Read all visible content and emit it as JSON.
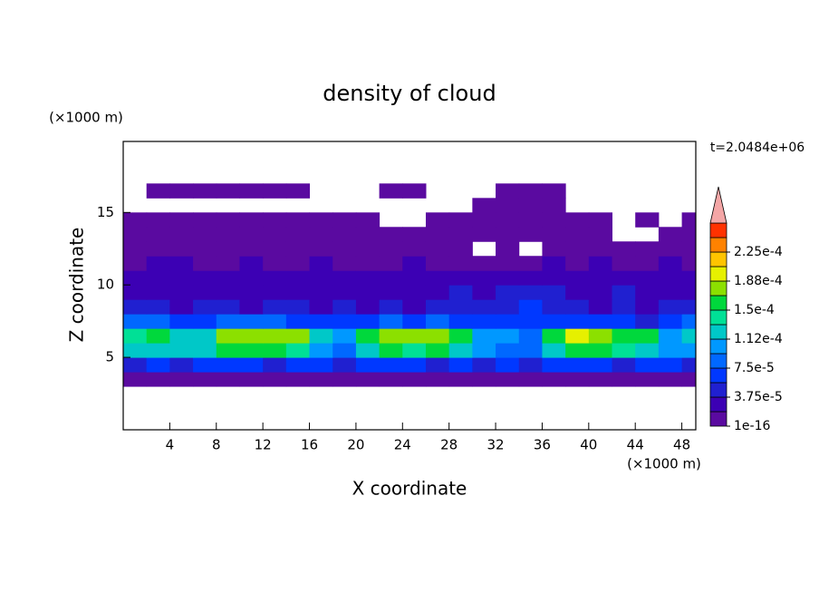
{
  "chart_data": {
    "type": "contour",
    "title": "density of cloud",
    "x_label": "X coordinate",
    "y_label": "Z coordinate",
    "x_unit": "(×1000 m)",
    "y_unit": "(×1000 m)",
    "time_label": "t=2.0484e+06",
    "xlim": [
      0,
      49.2
    ],
    "ylim": [
      0,
      19.9
    ],
    "xticks": [
      4,
      8,
      12,
      16,
      20,
      24,
      28,
      32,
      36,
      40,
      44,
      48
    ],
    "yticks": [
      5,
      10,
      15
    ],
    "x": [
      1,
      3,
      5,
      7,
      9,
      11,
      13,
      15,
      17,
      19,
      21,
      23,
      25,
      27,
      29,
      31,
      33,
      35,
      37,
      39,
      41,
      43,
      45,
      47,
      49
    ],
    "y": [
      3.5,
      4.5,
      5.5,
      6.5,
      7.5,
      8.5,
      9.5,
      10.5,
      11.5,
      12.5,
      13.5,
      14.5,
      15.5,
      16.5,
      17.5
    ],
    "z": [
      [
        1e-05,
        1e-05,
        1e-05,
        1e-05,
        1e-05,
        1e-05,
        1e-05,
        1e-05,
        1e-05,
        1e-05,
        1e-05,
        1e-05,
        1e-05,
        1e-05,
        1e-05,
        1e-05,
        1e-05,
        1e-05,
        1e-05,
        1e-05,
        1e-05,
        1e-05,
        1e-05,
        1e-05,
        1e-05
      ],
      [
        5e-05,
        6e-05,
        5e-05,
        6e-05,
        7e-05,
        6e-05,
        5e-05,
        6e-05,
        6e-05,
        5e-05,
        6e-05,
        7e-05,
        6e-05,
        5e-05,
        6e-05,
        5e-05,
        6e-05,
        5e-05,
        6e-05,
        7e-05,
        6e-05,
        5e-05,
        6e-05,
        6e-05,
        5e-05
      ],
      [
        0.00012,
        0.00013,
        0.00012,
        0.00013,
        0.00015,
        0.00016,
        0.00015,
        0.00014,
        0.00011,
        9e-05,
        0.00013,
        0.00015,
        0.00014,
        0.00015,
        0.00013,
        0.0001,
        9e-05,
        8e-05,
        0.00012,
        0.00015,
        0.00015,
        0.00014,
        0.00013,
        0.0001,
        0.00011
      ],
      [
        0.00014,
        0.00015,
        0.00013,
        0.00012,
        0.00017,
        0.00018,
        0.00018,
        0.00017,
        0.00013,
        0.0001,
        0.00016,
        0.00018,
        0.00017,
        0.00018,
        0.00016,
        0.00011,
        0.0001,
        9e-05,
        0.00015,
        0.00019,
        0.00018,
        0.00016,
        0.00015,
        0.00011,
        0.00013
      ],
      [
        8e-05,
        9e-05,
        7e-05,
        6e-05,
        8e-05,
        9e-05,
        8e-05,
        7e-05,
        6e-05,
        7e-05,
        7e-05,
        8e-05,
        7e-05,
        8e-05,
        7e-05,
        6e-05,
        7e-05,
        7e-05,
        6e-05,
        7e-05,
        6e-05,
        6e-05,
        5e-05,
        7e-05,
        8e-05
      ],
      [
        4e-05,
        4e-05,
        3e-05,
        5e-05,
        4e-05,
        3e-05,
        4e-05,
        4e-05,
        3e-05,
        4e-05,
        3e-05,
        4e-05,
        3e-05,
        4e-05,
        5e-05,
        4e-05,
        5e-05,
        6e-05,
        5e-05,
        4e-05,
        3e-05,
        4e-05,
        3e-05,
        4e-05,
        4e-05
      ],
      [
        2e-05,
        3e-05,
        2e-05,
        2e-05,
        3e-05,
        2e-05,
        2e-05,
        3e-05,
        2e-05,
        2e-05,
        3e-05,
        2e-05,
        3e-05,
        2e-05,
        4e-05,
        3e-05,
        4e-05,
        5e-05,
        4e-05,
        3e-05,
        3e-05,
        4e-05,
        3e-05,
        2e-05,
        3e-05
      ],
      [
        2e-05,
        2e-05,
        3e-05,
        2e-05,
        2e-05,
        3e-05,
        2e-05,
        2e-05,
        2e-05,
        3e-05,
        2e-05,
        2e-05,
        2e-05,
        3e-05,
        2e-05,
        3e-05,
        2e-05,
        3e-05,
        2e-05,
        3e-05,
        2e-05,
        2e-05,
        3e-05,
        2e-05,
        2e-05
      ],
      [
        1e-05,
        2e-05,
        2e-05,
        1e-05,
        1e-05,
        2e-05,
        1e-05,
        1e-05,
        2e-05,
        1e-05,
        1e-05,
        1e-05,
        2e-05,
        1e-05,
        1e-05,
        1e-05,
        1e-05,
        1e-05,
        2e-05,
        1e-05,
        2e-05,
        1e-05,
        1e-05,
        2e-05,
        1e-05
      ],
      [
        5e-06,
        5e-06,
        5e-06,
        5e-06,
        5e-06,
        5e-06,
        5e-06,
        5e-06,
        5e-06,
        5e-06,
        5e-06,
        5e-06,
        5e-06,
        5e-06,
        5e-06,
        null,
        5e-06,
        null,
        5e-06,
        5e-06,
        5e-06,
        5e-06,
        5e-06,
        5e-06,
        5e-06
      ],
      [
        5e-06,
        5e-06,
        5e-06,
        5e-06,
        5e-06,
        5e-06,
        5e-06,
        5e-06,
        5e-06,
        5e-06,
        5e-06,
        5e-06,
        5e-06,
        5e-06,
        5e-06,
        5e-06,
        5e-06,
        5e-06,
        5e-06,
        5e-06,
        5e-06,
        null,
        null,
        5e-06,
        5e-06
      ],
      [
        5e-06,
        5e-06,
        5e-06,
        5e-06,
        5e-06,
        5e-06,
        5e-06,
        5e-06,
        5e-06,
        5e-06,
        5e-06,
        null,
        null,
        5e-06,
        5e-06,
        5e-06,
        5e-06,
        5e-06,
        5e-06,
        5e-06,
        5e-06,
        null,
        5e-06,
        null,
        5e-06
      ],
      [
        null,
        null,
        null,
        null,
        null,
        null,
        null,
        null,
        null,
        null,
        null,
        null,
        null,
        null,
        null,
        5e-06,
        5e-06,
        5e-06,
        5e-06,
        null,
        null,
        null,
        null,
        null,
        null
      ],
      [
        null,
        5e-06,
        5e-06,
        5e-06,
        5e-06,
        5e-06,
        5e-06,
        5e-06,
        null,
        null,
        null,
        5e-06,
        5e-06,
        null,
        null,
        null,
        5e-06,
        5e-06,
        5e-06,
        null,
        null,
        null,
        null,
        null,
        null
      ],
      [
        null,
        null,
        null,
        null,
        null,
        null,
        null,
        null,
        null,
        null,
        null,
        null,
        null,
        null,
        null,
        null,
        null,
        null,
        null,
        null,
        null,
        null,
        null,
        null,
        null
      ]
    ],
    "colorbar": {
      "levels": [
        1e-16,
        1.875e-05,
        3.75e-05,
        5.625e-05,
        7.5e-05,
        9.375e-05,
        0.0001125,
        0.00013125,
        0.00015,
        0.00016875,
        0.0001875,
        0.00020625,
        0.000225,
        0.00024375,
        0.0002625
      ],
      "colors": [
        "#5a0aa0",
        "#3c00b4",
        "#2020d0",
        "#0038ff",
        "#0068ff",
        "#0098ff",
        "#00c8c8",
        "#00e096",
        "#00d83c",
        "#8ce000",
        "#e6f000",
        "#ffc400",
        "#ff8200",
        "#ff3200"
      ],
      "extend_color": "#f4a6a6",
      "ticks": [
        {
          "value": 1e-16,
          "label": "1e-16"
        },
        {
          "value": 3.75e-05,
          "label": "3.75e-5"
        },
        {
          "value": 7.5e-05,
          "label": "7.5e-5"
        },
        {
          "value": 0.0001125,
          "label": "1.12e-4"
        },
        {
          "value": 0.00015,
          "label": "1.5e-4"
        },
        {
          "value": 0.0001875,
          "label": "1.88e-4"
        },
        {
          "value": 0.000225,
          "label": "2.25e-4"
        }
      ]
    }
  }
}
